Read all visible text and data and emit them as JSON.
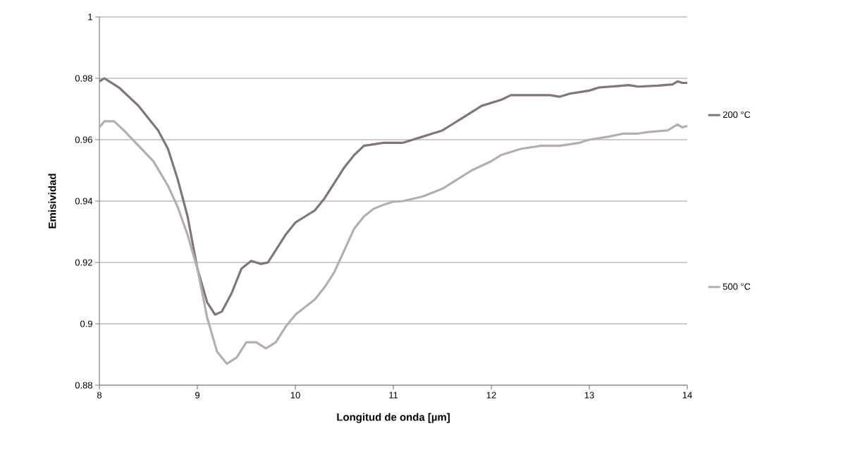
{
  "chart_data": {
    "type": "line",
    "xlabel": "Longitud de onda [µm]",
    "ylabel": "Emisividad",
    "xlim": [
      8,
      14
    ],
    "xticks": [
      8,
      9,
      10,
      11,
      12,
      13,
      14
    ],
    "ylim": [
      0.88,
      1
    ],
    "yticks": [
      0.88,
      0.9,
      0.92,
      0.94,
      0.96,
      0.98,
      1
    ],
    "grid": "y",
    "legend": "right",
    "marker": "none",
    "line_style": "solid",
    "series": [
      {
        "name": "200 °C",
        "color": "#807676",
        "x": [
          8.0,
          8.05,
          8.2,
          8.4,
          8.6,
          8.7,
          8.8,
          8.9,
          9.0,
          9.1,
          9.18,
          9.25,
          9.35,
          9.45,
          9.55,
          9.65,
          9.72,
          9.8,
          9.9,
          10.0,
          10.1,
          10.2,
          10.3,
          10.4,
          10.5,
          10.6,
          10.7,
          10.8,
          10.9,
          11.0,
          11.1,
          11.2,
          11.3,
          11.4,
          11.5,
          11.6,
          11.7,
          11.8,
          11.9,
          12.0,
          12.1,
          12.2,
          12.4,
          12.6,
          12.7,
          12.8,
          12.9,
          13.0,
          13.1,
          13.3,
          13.4,
          13.5,
          13.7,
          13.85,
          13.9,
          13.95,
          14.0
        ],
        "values": [
          0.979,
          0.98,
          0.977,
          0.971,
          0.963,
          0.957,
          0.947,
          0.935,
          0.918,
          0.907,
          0.903,
          0.904,
          0.91,
          0.918,
          0.9205,
          0.9195,
          0.92,
          0.924,
          0.929,
          0.933,
          0.935,
          0.937,
          0.941,
          0.946,
          0.951,
          0.955,
          0.958,
          0.9585,
          0.959,
          0.959,
          0.959,
          0.96,
          0.961,
          0.962,
          0.963,
          0.965,
          0.967,
          0.969,
          0.971,
          0.972,
          0.973,
          0.9745,
          0.9745,
          0.9745,
          0.974,
          0.975,
          0.9755,
          0.976,
          0.977,
          0.9775,
          0.9778,
          0.9773,
          0.9776,
          0.978,
          0.979,
          0.9785,
          0.9785
        ]
      },
      {
        "name": "500 °C",
        "color": "#b5aeae",
        "x": [
          8.0,
          8.05,
          8.15,
          8.25,
          8.4,
          8.55,
          8.7,
          8.8,
          8.9,
          9.0,
          9.1,
          9.2,
          9.3,
          9.4,
          9.5,
          9.6,
          9.7,
          9.8,
          9.9,
          10.0,
          10.2,
          10.3,
          10.4,
          10.5,
          10.6,
          10.7,
          10.8,
          10.9,
          11.0,
          11.1,
          11.3,
          11.5,
          11.6,
          11.8,
          12.0,
          12.1,
          12.3,
          12.5,
          12.7,
          12.9,
          13.0,
          13.2,
          13.35,
          13.5,
          13.6,
          13.8,
          13.9,
          13.95,
          14.0
        ],
        "values": [
          0.964,
          0.966,
          0.966,
          0.963,
          0.958,
          0.953,
          0.945,
          0.938,
          0.929,
          0.918,
          0.902,
          0.891,
          0.887,
          0.889,
          0.894,
          0.894,
          0.892,
          0.894,
          0.899,
          0.903,
          0.908,
          0.912,
          0.917,
          0.924,
          0.931,
          0.935,
          0.9375,
          0.9388,
          0.9398,
          0.94,
          0.9415,
          0.944,
          0.946,
          0.95,
          0.953,
          0.955,
          0.957,
          0.958,
          0.958,
          0.959,
          0.96,
          0.961,
          0.962,
          0.962,
          0.9625,
          0.963,
          0.965,
          0.964,
          0.9645
        ]
      }
    ]
  }
}
